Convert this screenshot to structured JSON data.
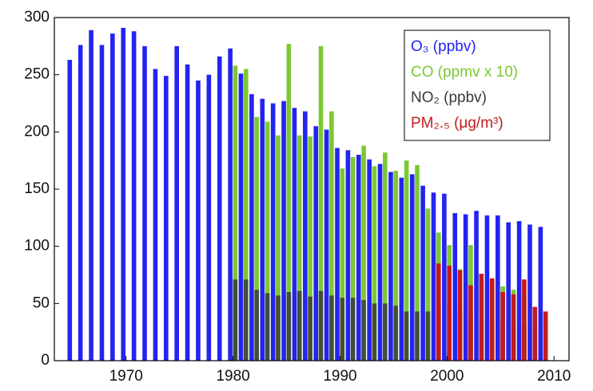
{
  "chart_data": {
    "type": "bar",
    "x_o3": null,
    "series": [
      {
        "name": "O₃ (ppbv)",
        "color": "#2424f0",
        "x": [
          1965,
          1966,
          1967,
          1968,
          1969,
          1970,
          1971,
          1972,
          1973,
          1974,
          1975,
          1976,
          1977,
          1978,
          1979,
          1980,
          1981,
          1982,
          1983,
          1984,
          1985,
          1986,
          1987,
          1988,
          1989,
          1990,
          1991,
          1992,
          1993,
          1994,
          1995,
          1996,
          1997,
          1998,
          1999,
          2000,
          2001,
          2002,
          2003,
          2004,
          2005,
          2006,
          2007,
          2008,
          2009
        ],
        "values": [
          263,
          276,
          289,
          276,
          286,
          291,
          288,
          275,
          255,
          249,
          275,
          259,
          245,
          250,
          266,
          273,
          251,
          233,
          229,
          225,
          227,
          221,
          218,
          205,
          202,
          186,
          184,
          180,
          176,
          172,
          165,
          160,
          163,
          153,
          147,
          146,
          129,
          128,
          131,
          127,
          127,
          121,
          122,
          119,
          117
        ]
      },
      {
        "name": "CO (ppmv x 10)",
        "color": "#7dc832",
        "x": [
          1980,
          1981,
          1982,
          1983,
          1984,
          1985,
          1986,
          1987,
          1988,
          1989,
          1990,
          1991,
          1992,
          1993,
          1994,
          1995,
          1996,
          1997,
          1998,
          1999,
          2000,
          2001,
          2002,
          2003,
          2004,
          2005,
          2006,
          2007,
          2008
        ],
        "values": [
          258,
          255,
          213,
          209,
          197,
          277,
          197,
          196,
          275,
          218,
          168,
          178,
          188,
          170,
          182,
          166,
          175,
          171,
          133,
          112,
          101,
          80,
          101,
          69,
          70,
          65,
          62,
          55,
          45
        ]
      },
      {
        "name": "NO₂ (ppbv)",
        "color": "#3a3a3a",
        "x": [
          1980,
          1981,
          1982,
          1983,
          1984,
          1985,
          1986,
          1987,
          1988,
          1989,
          1990,
          1991,
          1992,
          1993,
          1994,
          1995,
          1996,
          1997,
          1998,
          1999,
          2000,
          2001,
          2002,
          2003,
          2004,
          2005,
          2006,
          2007,
          2008
        ],
        "values": [
          71,
          71,
          62,
          59,
          57,
          60,
          61,
          56,
          61,
          57,
          55,
          55,
          53,
          50,
          50,
          48,
          43,
          43,
          43,
          51,
          45,
          43,
          40,
          36,
          35,
          34,
          32,
          32,
          31
        ]
      },
      {
        "name": "PM₂.₅ (μg/m³)",
        "color": "#c41a1e",
        "x": [
          1999,
          2000,
          2001,
          2002,
          2003,
          2004,
          2005,
          2006,
          2007,
          2008,
          2009
        ],
        "values": [
          85,
          83,
          79,
          66,
          76,
          72,
          60,
          58,
          71,
          47,
          43
        ]
      }
    ],
    "xlim": [
      1963.3,
      2011.4
    ],
    "xticks": [
      1970,
      1980,
      1990,
      2000,
      2010
    ],
    "ylim": [
      0,
      300
    ],
    "yticks": [
      0,
      50,
      100,
      150,
      200,
      250,
      300
    ],
    "grid": false,
    "legend": "upper right"
  }
}
